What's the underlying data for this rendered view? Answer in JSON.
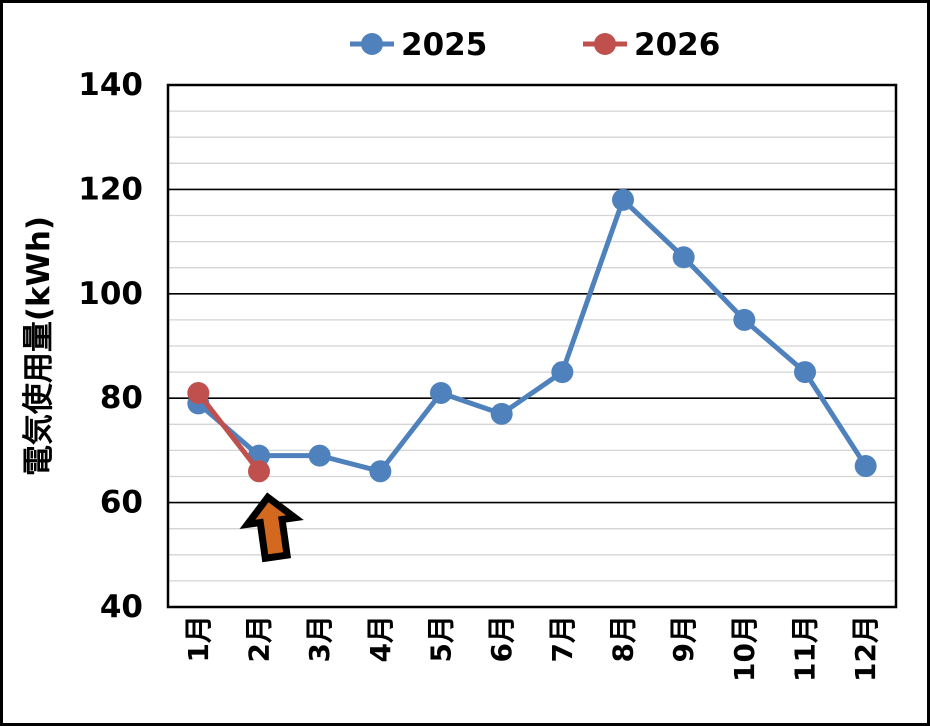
{
  "chart_data": {
    "type": "line",
    "title": "",
    "xlabel": "",
    "ylabel": "電気使用量(kWh)",
    "categories": [
      "1月",
      "2月",
      "3月",
      "4月",
      "5月",
      "6月",
      "7月",
      "8月",
      "9月",
      "10月",
      "11月",
      "12月"
    ],
    "series": [
      {
        "name": "2025",
        "color": "#4F81BD",
        "values": [
          79,
          69,
          69,
          66,
          81,
          77,
          85,
          118,
          107,
          95,
          85,
          67
        ]
      },
      {
        "name": "2026",
        "color": "#C0504D",
        "values": [
          81,
          66
        ]
      }
    ],
    "ylim": [
      40,
      140
    ],
    "yticks": [
      40,
      60,
      80,
      100,
      120,
      140
    ],
    "grid": {
      "major_step": 20,
      "minor_step": 5,
      "major_color": "#000000",
      "minor_color": "#D4D4D4",
      "border_color": "#000000"
    },
    "legend_position": "top",
    "annotation": {
      "type": "up-arrow",
      "color": "#D2691E",
      "outline_color": "#000000",
      "points_at": "2026 2月 data point"
    }
  }
}
